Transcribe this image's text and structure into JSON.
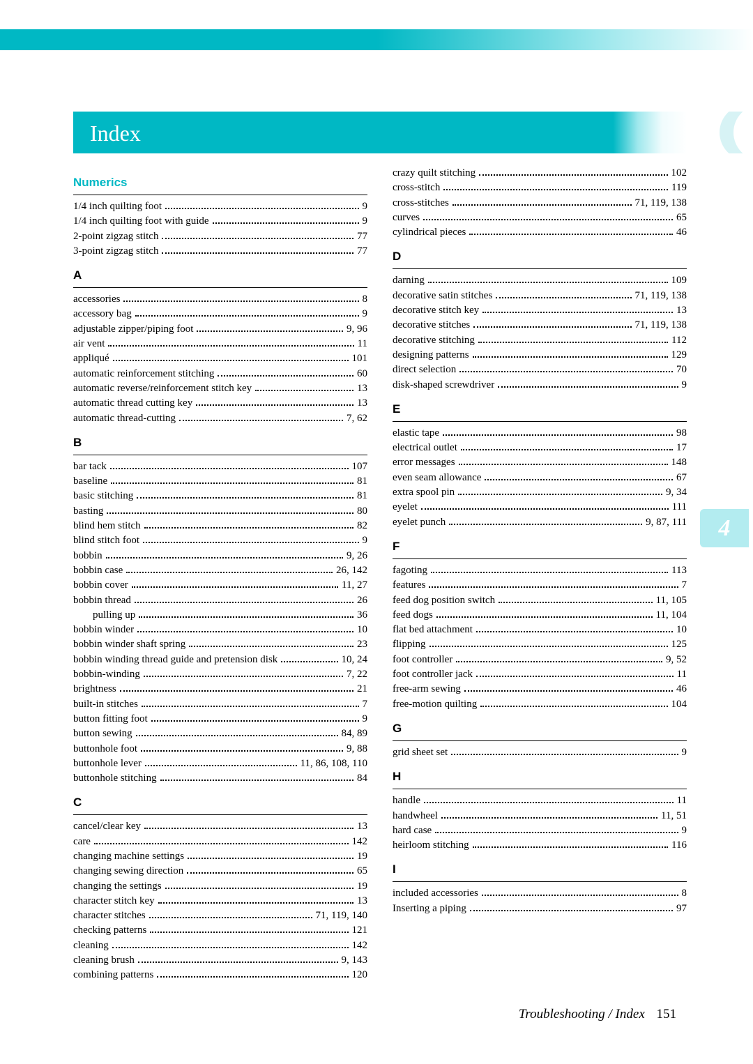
{
  "header": {
    "title": "Index"
  },
  "side_tab": {
    "label": "4"
  },
  "footer": {
    "section": "Troubleshooting / Index",
    "page": "151"
  },
  "left_sections": [
    {
      "title": "Numerics",
      "title_color": "teal",
      "entries": [
        {
          "term": "1/4 inch quilting foot",
          "pages": "9"
        },
        {
          "term": "1/4 inch quilting foot with guide",
          "pages": "9"
        },
        {
          "term": "2-point zigzag stitch",
          "pages": "77"
        },
        {
          "term": "3-point zigzag stitch",
          "pages": "77"
        }
      ]
    },
    {
      "title": "A",
      "title_color": "black",
      "entries": [
        {
          "term": "accessories",
          "pages": "8"
        },
        {
          "term": "accessory bag",
          "pages": "9"
        },
        {
          "term": "adjustable zipper/piping foot",
          "pages": "9, 96"
        },
        {
          "term": "air vent",
          "pages": "11"
        },
        {
          "term": "appliqué",
          "pages": "101"
        },
        {
          "term": "automatic reinforcement stitching",
          "pages": "60"
        },
        {
          "term": "automatic reverse/reinforcement stitch key",
          "pages": "13"
        },
        {
          "term": "automatic thread cutting key",
          "pages": "13"
        },
        {
          "term": "automatic thread-cutting",
          "pages": "7, 62"
        }
      ]
    },
    {
      "title": "B",
      "title_color": "black",
      "entries": [
        {
          "term": "bar tack",
          "pages": "107"
        },
        {
          "term": "baseline",
          "pages": "81"
        },
        {
          "term": "basic stitching",
          "pages": "81"
        },
        {
          "term": "basting",
          "pages": "80"
        },
        {
          "term": "blind hem stitch",
          "pages": "82"
        },
        {
          "term": "blind stitch foot",
          "pages": "9"
        },
        {
          "term": "bobbin",
          "pages": "9, 26"
        },
        {
          "term": "bobbin case",
          "pages": "26, 142"
        },
        {
          "term": "bobbin cover",
          "pages": "11, 27"
        },
        {
          "term": "bobbin thread",
          "pages": "26"
        },
        {
          "term": "pulling up",
          "pages": "36",
          "indent": true
        },
        {
          "term": "bobbin winder",
          "pages": "10"
        },
        {
          "term": "bobbin winder shaft spring",
          "pages": "23"
        },
        {
          "term": "bobbin winding thread guide and pretension disk",
          "pages": "10, 24"
        },
        {
          "term": "bobbin-winding",
          "pages": "7, 22"
        },
        {
          "term": "brightness",
          "pages": "21"
        },
        {
          "term": "built-in stitches",
          "pages": "7"
        },
        {
          "term": "button fitting foot",
          "pages": "9"
        },
        {
          "term": "button sewing",
          "pages": "84, 89"
        },
        {
          "term": "buttonhole foot",
          "pages": "9, 88"
        },
        {
          "term": "buttonhole lever",
          "pages": "11, 86, 108, 110"
        },
        {
          "term": "buttonhole stitching",
          "pages": "84"
        }
      ]
    },
    {
      "title": "C",
      "title_color": "black",
      "entries": [
        {
          "term": "cancel/clear key",
          "pages": "13"
        },
        {
          "term": "care",
          "pages": "142"
        },
        {
          "term": "changing machine settings",
          "pages": "19"
        },
        {
          "term": "changing sewing direction",
          "pages": "65"
        },
        {
          "term": "changing the settings",
          "pages": "19"
        },
        {
          "term": "character stitch key",
          "pages": "13"
        },
        {
          "term": "character stitches",
          "pages": "71, 119, 140"
        },
        {
          "term": "checking patterns",
          "pages": "121"
        },
        {
          "term": "cleaning",
          "pages": "142"
        },
        {
          "term": "cleaning brush",
          "pages": "9, 143"
        },
        {
          "term": "combining patterns",
          "pages": "120"
        }
      ]
    }
  ],
  "right_sections": [
    {
      "title": null,
      "entries": [
        {
          "term": "crazy quilt stitching",
          "pages": "102"
        },
        {
          "term": "cross-stitch",
          "pages": "119"
        },
        {
          "term": "cross-stitches",
          "pages": "71, 119, 138"
        },
        {
          "term": "curves",
          "pages": "65"
        },
        {
          "term": "cylindrical pieces",
          "pages": "46"
        }
      ]
    },
    {
      "title": "D",
      "title_color": "black",
      "entries": [
        {
          "term": "darning",
          "pages": "109"
        },
        {
          "term": "decorative satin stitches",
          "pages": "71, 119, 138"
        },
        {
          "term": "decorative stitch key",
          "pages": "13"
        },
        {
          "term": "decorative stitches",
          "pages": "71, 119, 138"
        },
        {
          "term": "decorative stitching",
          "pages": "112"
        },
        {
          "term": "designing patterns",
          "pages": "129"
        },
        {
          "term": "direct selection",
          "pages": "70"
        },
        {
          "term": "disk-shaped screwdriver",
          "pages": "9"
        }
      ]
    },
    {
      "title": "E",
      "title_color": "black",
      "entries": [
        {
          "term": "elastic tape",
          "pages": "98"
        },
        {
          "term": "electrical outlet",
          "pages": "17"
        },
        {
          "term": "error messages",
          "pages": "148"
        },
        {
          "term": "even seam allowance",
          "pages": "67"
        },
        {
          "term": "extra spool pin",
          "pages": "9, 34"
        },
        {
          "term": "eyelet",
          "pages": "111"
        },
        {
          "term": "eyelet punch",
          "pages": "9, 87, 111"
        }
      ]
    },
    {
      "title": "F",
      "title_color": "black",
      "entries": [
        {
          "term": "fagoting",
          "pages": "113"
        },
        {
          "term": "features",
          "pages": "7"
        },
        {
          "term": "feed dog position switch",
          "pages": "11, 105"
        },
        {
          "term": "feed dogs",
          "pages": "11, 104"
        },
        {
          "term": "flat bed attachment",
          "pages": "10"
        },
        {
          "term": "flipping",
          "pages": "125"
        },
        {
          "term": "foot controller",
          "pages": "9, 52"
        },
        {
          "term": "foot controller jack",
          "pages": "11"
        },
        {
          "term": "free-arm sewing",
          "pages": "46"
        },
        {
          "term": "free-motion quilting",
          "pages": "104"
        }
      ]
    },
    {
      "title": "G",
      "title_color": "black",
      "entries": [
        {
          "term": "grid sheet set",
          "pages": "9"
        }
      ]
    },
    {
      "title": "H",
      "title_color": "black",
      "entries": [
        {
          "term": "handle",
          "pages": "11"
        },
        {
          "term": "handwheel",
          "pages": "11, 51"
        },
        {
          "term": "hard case",
          "pages": "9"
        },
        {
          "term": "heirloom stitching",
          "pages": "116"
        }
      ]
    },
    {
      "title": "I",
      "title_color": "black",
      "entries": [
        {
          "term": "included accessories",
          "pages": "8"
        },
        {
          "term": "Inserting a piping",
          "pages": "97"
        }
      ]
    }
  ]
}
